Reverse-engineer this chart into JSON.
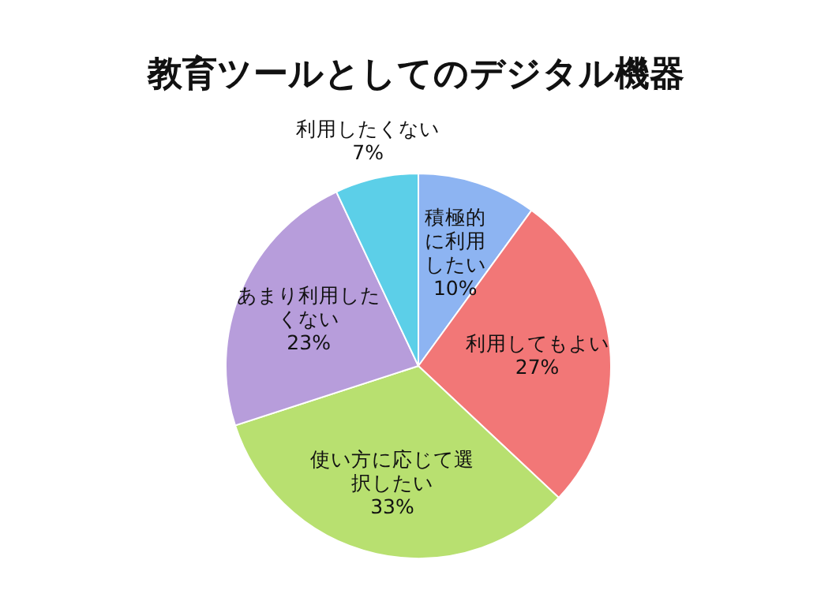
{
  "chart_data": {
    "type": "pie",
    "title": "教育ツールとしてのデジタル機器",
    "categories": [
      "積極的に利用したい",
      "利用してもよい",
      "使い方に応じて選択したい",
      "あまり利用したくない",
      "利用したくない"
    ],
    "values": [
      10,
      27,
      33,
      23,
      7
    ],
    "colors": [
      "#8db4f2",
      "#f27777",
      "#b8e070",
      "#b79ddb",
      "#5ccfe8"
    ],
    "value_labels": [
      "10%",
      "27%",
      "33%",
      "23%",
      "7%"
    ]
  }
}
